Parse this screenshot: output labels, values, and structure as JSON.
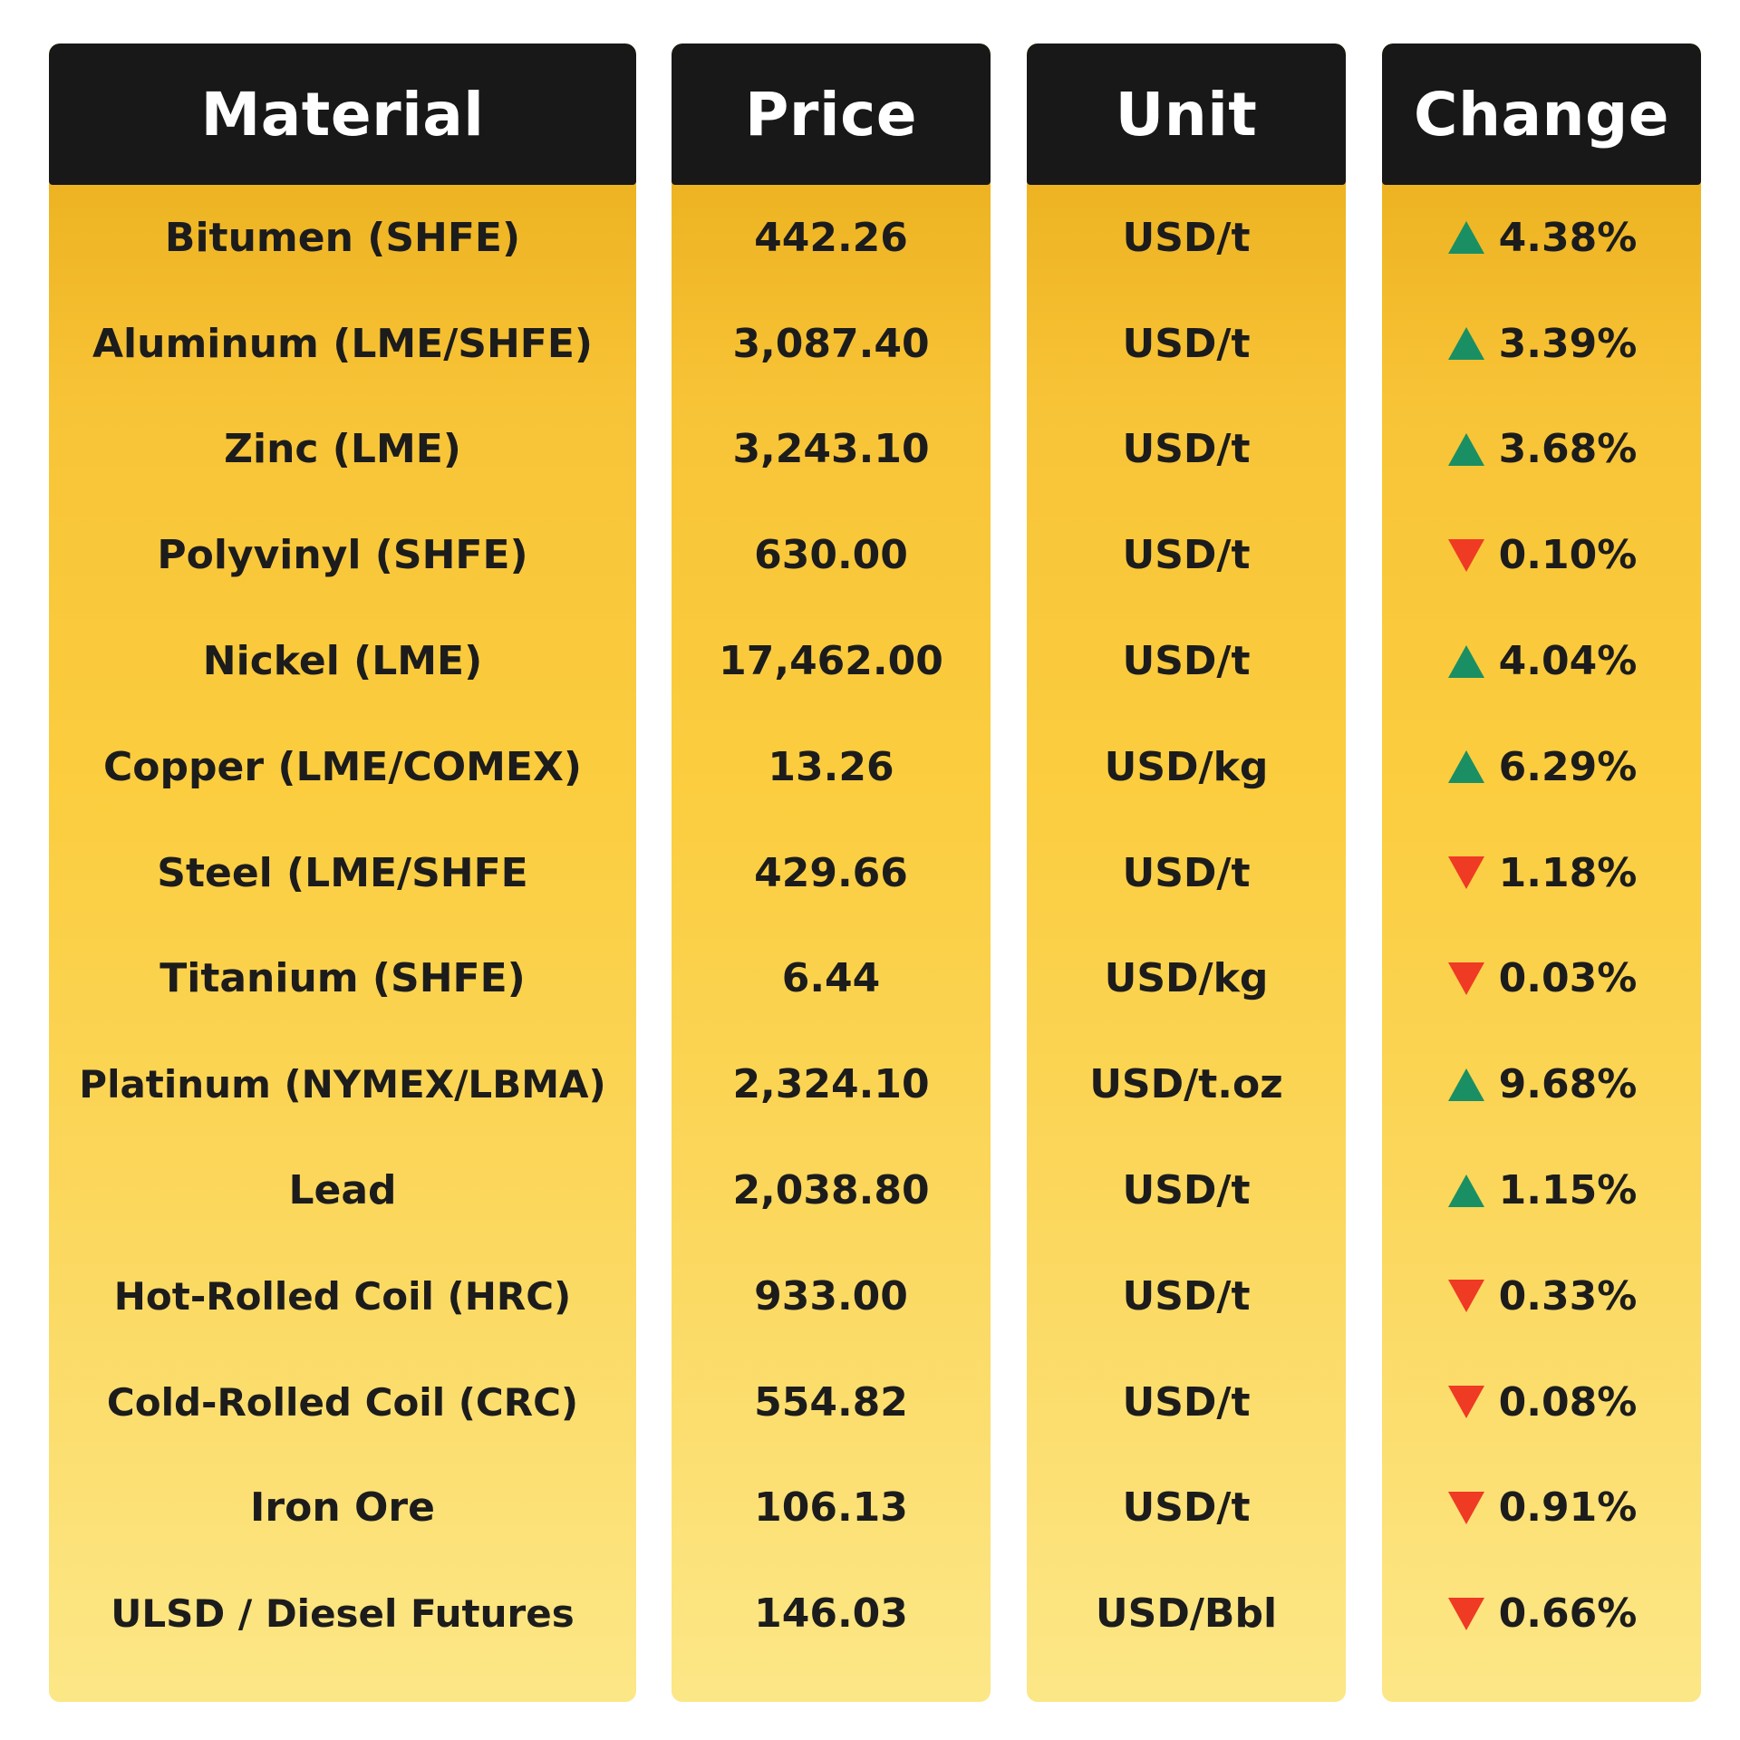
{
  "chart_data": {
    "type": "table",
    "columns": [
      "Material",
      "Price",
      "Unit",
      "Change"
    ],
    "rows": [
      {
        "material": "Bitumen (SHFE)",
        "price": "442.26",
        "unit": "USD/t",
        "direction": "up",
        "change": "4.38%"
      },
      {
        "material": "Aluminum (LME/SHFE)",
        "price": "3,087.40",
        "unit": "USD/t",
        "direction": "up",
        "change": "3.39%"
      },
      {
        "material": "Zinc (LME)",
        "price": "3,243.10",
        "unit": "USD/t",
        "direction": "up",
        "change": "3.68%"
      },
      {
        "material": "Polyvinyl (SHFE)",
        "price": "630.00",
        "unit": "USD/t",
        "direction": "down",
        "change": "0.10%"
      },
      {
        "material": "Nickel (LME)",
        "price": "17,462.00",
        "unit": "USD/t",
        "direction": "up",
        "change": "4.04%"
      },
      {
        "material": "Copper (LME/COMEX)",
        "price": "13.26",
        "unit": "USD/kg",
        "direction": "up",
        "change": "6.29%"
      },
      {
        "material": "Steel (LME/SHFE",
        "price": "429.66",
        "unit": "USD/t",
        "direction": "down",
        "change": "1.18%"
      },
      {
        "material": "Titanium (SHFE)",
        "price": "6.44",
        "unit": "USD/kg",
        "direction": "down",
        "change": "0.03%"
      },
      {
        "material": "Platinum (NYMEX/LBMA)",
        "price": "2,324.10",
        "unit": "USD/t.oz",
        "direction": "up",
        "change": "9.68%"
      },
      {
        "material": "Lead",
        "price": "2,038.80",
        "unit": "USD/t",
        "direction": "up",
        "change": "1.15%"
      },
      {
        "material": "Hot-Rolled Coil (HRC)",
        "price": "933.00",
        "unit": "USD/t",
        "direction": "down",
        "change": "0.33%"
      },
      {
        "material": "Cold-Rolled Coil (CRC)",
        "price": "554.82",
        "unit": "USD/t",
        "direction": "down",
        "change": "0.08%"
      },
      {
        "material": "Iron Ore",
        "price": "106.13",
        "unit": "USD/t",
        "direction": "down",
        "change": "0.91%"
      },
      {
        "material": "ULSD / Diesel Futures",
        "price": "146.03",
        "unit": "USD/Bbl",
        "direction": "down",
        "change": "0.66%"
      }
    ]
  },
  "colors": {
    "header_bg": "#181818",
    "header_text": "#ffffff",
    "body_gradient_top": "#e6a815",
    "body_gradient_bottom": "#fce787",
    "up_arrow": "#1a8f63",
    "down_arrow": "#ef3a24",
    "text": "#1c1c1c"
  },
  "icons": {
    "up": "triangle-up-icon",
    "down": "triangle-down-icon"
  }
}
